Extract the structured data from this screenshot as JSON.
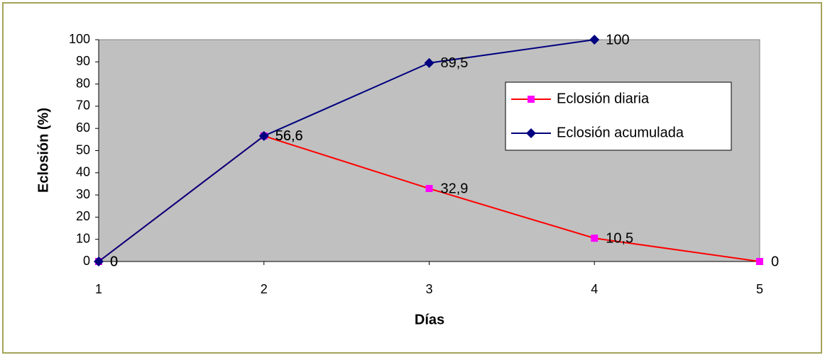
{
  "chart_data": {
    "type": "line",
    "y_axis_title": "Eclosión (%)",
    "x_axis_title": "Días",
    "x": [
      1,
      2,
      3,
      4,
      5
    ],
    "xlim": [
      1,
      5
    ],
    "xticks": [
      1,
      2,
      3,
      4,
      5
    ],
    "ylim": [
      0,
      100
    ],
    "yticks": [
      0,
      10,
      20,
      30,
      40,
      50,
      60,
      70,
      80,
      90,
      100
    ],
    "grid": false,
    "legend": "upper-right",
    "series": [
      {
        "name": "Eclosión diaria",
        "color": "#ff0000",
        "marker": "square",
        "marker_color": "#ff00ff",
        "values": [
          0,
          56.6,
          32.9,
          10.5,
          0
        ],
        "value_labels": [
          "0",
          "56,6",
          "32,9",
          "10,5",
          "0"
        ]
      },
      {
        "name": "Eclosión acumulada",
        "color": "#000080",
        "marker": "diamond",
        "marker_color": "#000080",
        "values": [
          0,
          56.6,
          89.5,
          100,
          null
        ],
        "value_labels": [
          "0",
          "56,6",
          "89,5",
          "100",
          null
        ]
      }
    ]
  }
}
